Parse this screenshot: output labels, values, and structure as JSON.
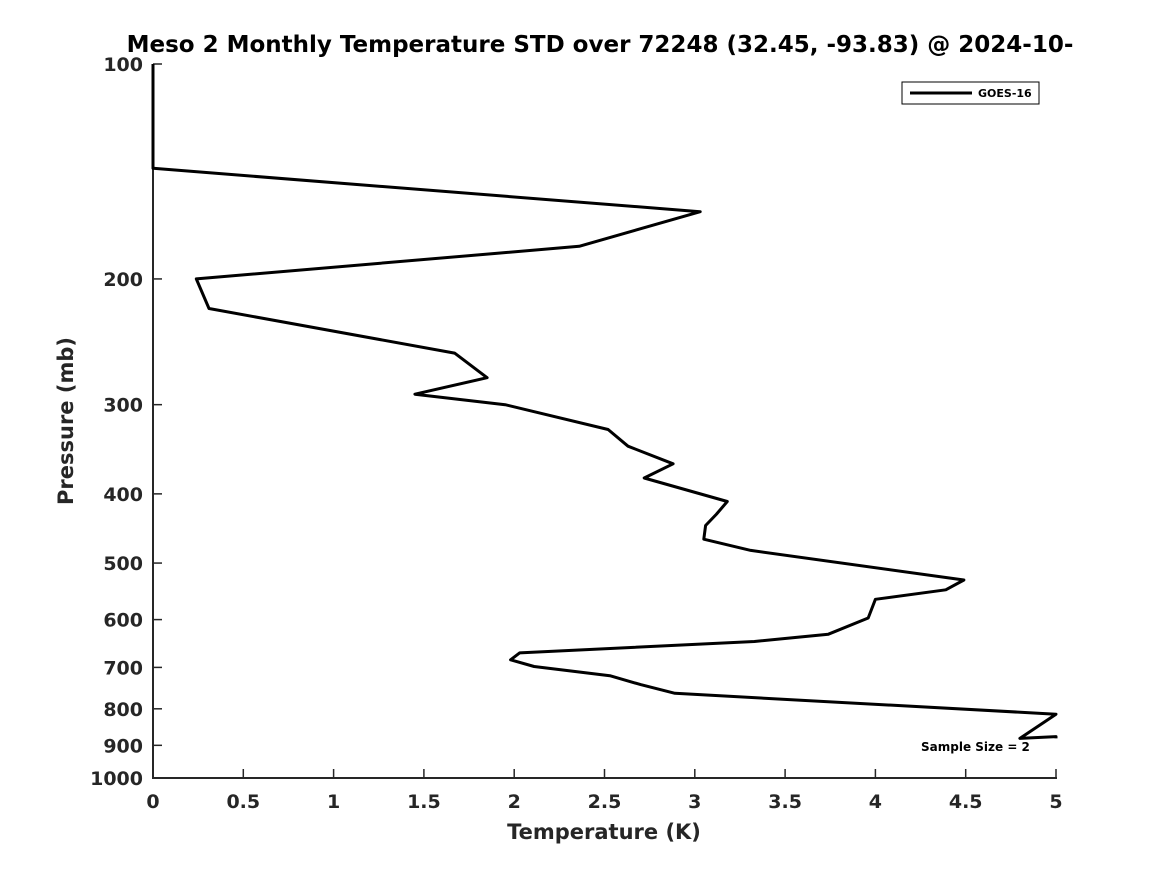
{
  "chart_data": {
    "type": "line",
    "title": "Meso 2 Monthly Temperature STD over 72248 (32.45, -93.83) @ 2024-10-",
    "xlabel": "Temperature (K)",
    "ylabel": "Pressure (mb)",
    "xlim": [
      0,
      5
    ],
    "ylim": [
      100,
      1000
    ],
    "y_scale": "log",
    "y_reversed": true,
    "grid": false,
    "legend_position": "top-right",
    "x_ticks": [
      0,
      0.5,
      1,
      1.5,
      2,
      2.5,
      3,
      3.5,
      4,
      4.5,
      5
    ],
    "x_tick_labels": [
      "0",
      "0.5",
      "1",
      "1.5",
      "2",
      "2.5",
      "3",
      "3.5",
      "4",
      "4.5",
      "5"
    ],
    "y_ticks": [
      100,
      200,
      300,
      400,
      500,
      600,
      700,
      800,
      900,
      1000
    ],
    "y_tick_labels": [
      "100",
      "200",
      "300",
      "400",
      "500",
      "600",
      "700",
      "800",
      "900",
      "1000"
    ],
    "annotation": "Sample Size = 2",
    "series": [
      {
        "name": "GOES-16",
        "color": "#000000",
        "points": [
          [
            0.0,
            100
          ],
          [
            0.0,
            110
          ],
          [
            0.0,
            125
          ],
          [
            0.0,
            140
          ],
          [
            3.03,
            161
          ],
          [
            2.36,
            180
          ],
          [
            0.24,
            200
          ],
          [
            0.31,
            220
          ],
          [
            1.67,
            254
          ],
          [
            1.85,
            275
          ],
          [
            1.45,
            290
          ],
          [
            1.95,
            300
          ],
          [
            2.52,
            325
          ],
          [
            2.63,
            343
          ],
          [
            2.88,
            363
          ],
          [
            2.72,
            380
          ],
          [
            3.18,
            410
          ],
          [
            3.12,
            427
          ],
          [
            3.06,
            443
          ],
          [
            3.05,
            463
          ],
          [
            3.31,
            480
          ],
          [
            4.49,
            528
          ],
          [
            4.39,
            545
          ],
          [
            4.0,
            562
          ],
          [
            3.96,
            597
          ],
          [
            3.74,
            629
          ],
          [
            3.33,
            644
          ],
          [
            2.03,
            668
          ],
          [
            1.98,
            683
          ],
          [
            2.11,
            698
          ],
          [
            2.53,
            719
          ],
          [
            2.7,
            740
          ],
          [
            2.89,
            761
          ],
          [
            5.0,
            814
          ],
          [
            4.8,
            880
          ],
          [
            5.0,
            875
          ],
          [
            5.0,
            880
          ]
        ]
      }
    ]
  }
}
